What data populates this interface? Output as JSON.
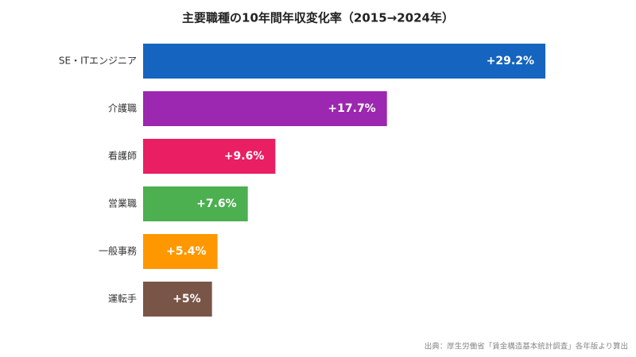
{
  "chart_data": {
    "type": "bar",
    "orientation": "horizontal",
    "title": "主要職種の10年間年収変化率（2015→2024年）",
    "categories": [
      "SE・ITエンジニア",
      "介護職",
      "看護師",
      "営業職",
      "一般事務",
      "運転手"
    ],
    "values": [
      29.2,
      17.7,
      9.6,
      7.6,
      5.4,
      5
    ],
    "value_labels": [
      "+29.2%",
      "+17.7%",
      "+9.6%",
      "+7.6%",
      "+5.4%",
      "+5%"
    ],
    "colors": [
      "#1565c0",
      "#9c27b0",
      "#e91e63",
      "#4caf50",
      "#ff9800",
      "#795548"
    ],
    "source": "出典：厚生労働省「賃金構造基本統計調査」各年版より算出"
  }
}
